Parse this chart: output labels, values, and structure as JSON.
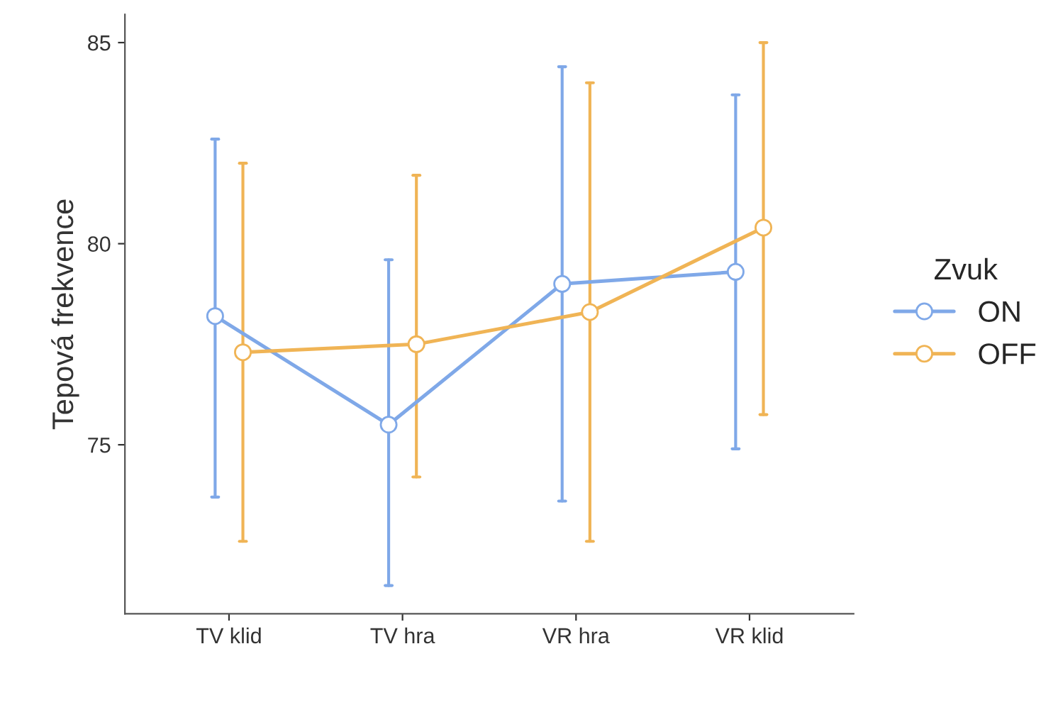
{
  "chart_data": {
    "type": "line",
    "ylabel": "Tepová frekvence",
    "legend_title": "Zvuk",
    "categories": [
      "TV klid",
      "TV hra",
      "VR hra",
      "VR klid"
    ],
    "series": [
      {
        "name": "ON",
        "color": "#7fa8e8",
        "values": [
          78.2,
          75.5,
          79.0,
          79.3
        ],
        "errors": [
          [
            73.7,
            82.6
          ],
          [
            71.5,
            79.6
          ],
          [
            73.6,
            84.4
          ],
          [
            74.9,
            83.7
          ]
        ]
      },
      {
        "name": "OFF",
        "color": "#f0b455",
        "values": [
          77.3,
          77.5,
          78.3,
          80.4
        ],
        "errors": [
          [
            72.6,
            82.0
          ],
          [
            74.2,
            81.7
          ],
          [
            72.6,
            84.0
          ],
          [
            75.75,
            85.0
          ]
        ]
      }
    ],
    "ylim": [
      70.8,
      85.7
    ],
    "yticks": [
      75,
      80,
      85
    ],
    "grid": false,
    "legend": "right",
    "marker": "circle",
    "line_style": "solid"
  }
}
